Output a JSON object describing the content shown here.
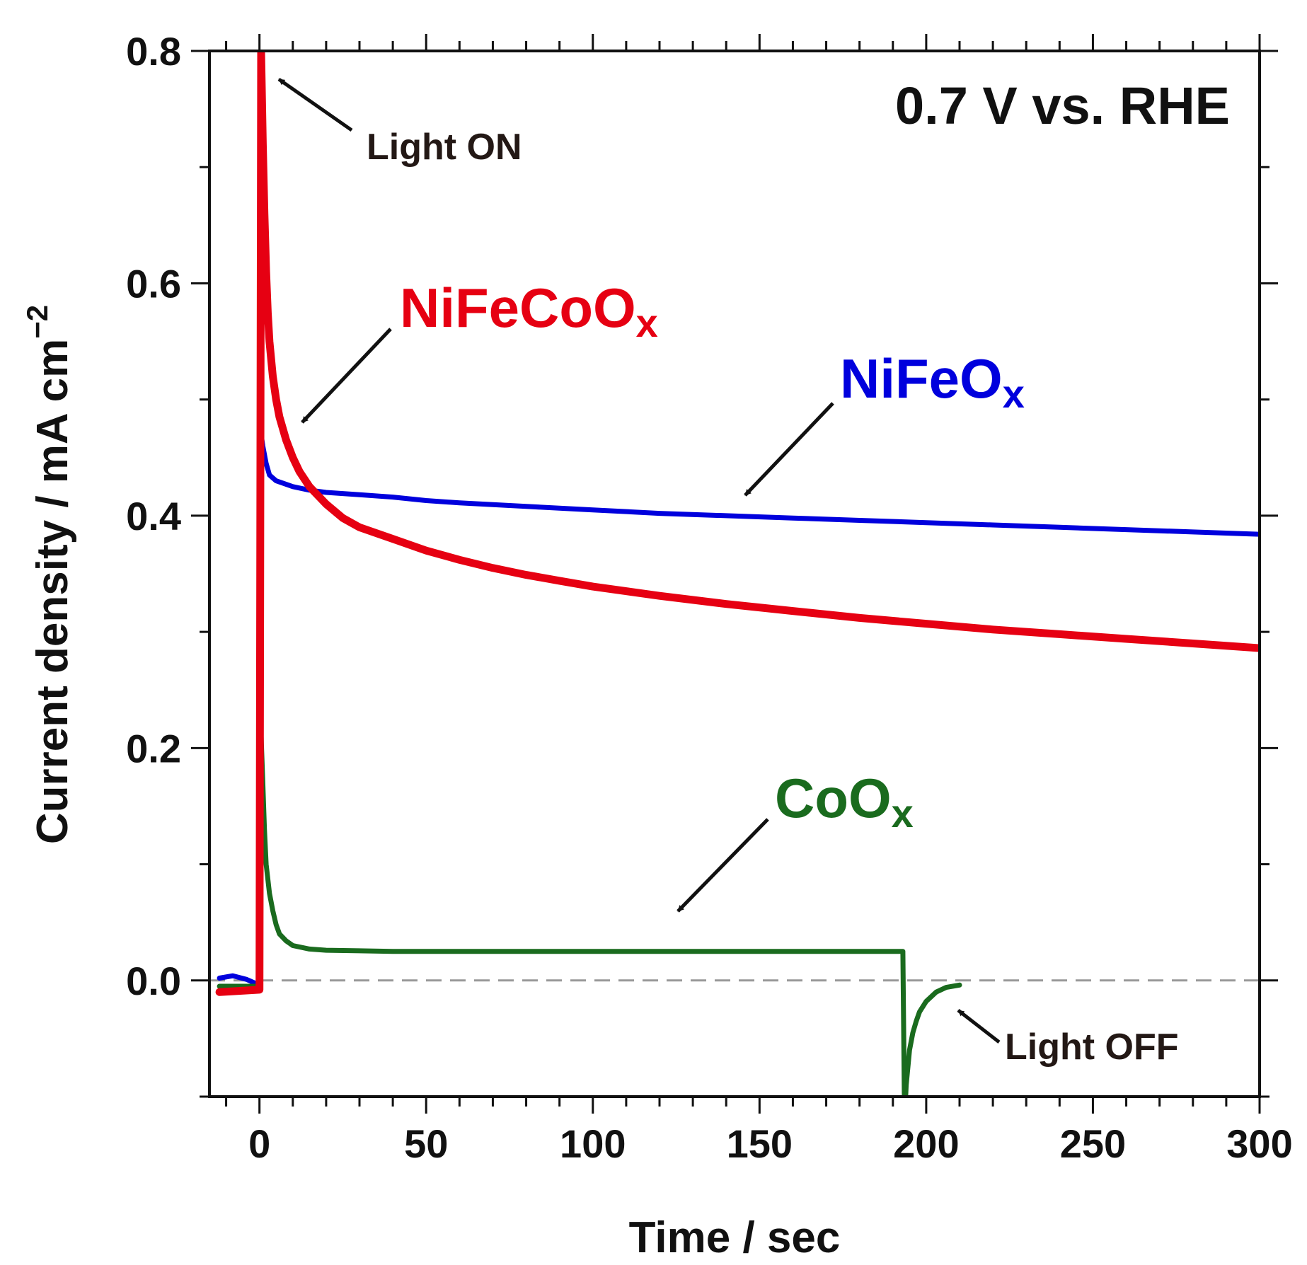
{
  "chart_data": {
    "type": "line",
    "title": "",
    "condition": "0.7 V vs. RHE",
    "xlabel": "Time  / sec",
    "ylabel": "Current density / mA cm",
    "ylabel_sup": "−2",
    "xlim": [
      -15,
      300
    ],
    "ylim": [
      -0.1,
      0.8
    ],
    "x_ticks": [
      0,
      50,
      100,
      150,
      200,
      250,
      300
    ],
    "x_tick_labels": [
      "0",
      "50",
      "100",
      "150",
      "200",
      "250",
      "300"
    ],
    "y_ticks": [
      0.0,
      0.2,
      0.4,
      0.6,
      0.8
    ],
    "y_tick_labels": [
      "0.0",
      "0.2",
      "0.4",
      "0.6",
      "0.8"
    ],
    "zero_line": 0.0,
    "series": [
      {
        "name": "NiFeCoO",
        "subscript": "x",
        "color": "#e60012",
        "x": [
          -12,
          0,
          0.5,
          1,
          1.5,
          2,
          2.5,
          3,
          4,
          5,
          6,
          8,
          10,
          12,
          15,
          20,
          25,
          30,
          40,
          50,
          60,
          70,
          80,
          90,
          100,
          120,
          140,
          160,
          180,
          200,
          220,
          240,
          260,
          280,
          300
        ],
        "y": [
          -0.01,
          -0.008,
          0.8,
          0.72,
          0.66,
          0.61,
          0.575,
          0.55,
          0.52,
          0.5,
          0.485,
          0.465,
          0.45,
          0.438,
          0.425,
          0.41,
          0.398,
          0.39,
          0.38,
          0.37,
          0.362,
          0.355,
          0.349,
          0.344,
          0.339,
          0.331,
          0.324,
          0.318,
          0.312,
          0.307,
          0.302,
          0.298,
          0.294,
          0.29,
          0.286
        ]
      },
      {
        "name": "NiFeO",
        "subscript": "x",
        "color": "#0000dd",
        "x": [
          -12,
          -8,
          -4,
          0,
          0.5,
          1,
          2,
          3,
          5,
          10,
          15,
          20,
          30,
          40,
          50,
          60,
          80,
          100,
          120,
          140,
          160,
          180,
          200,
          220,
          240,
          260,
          280,
          300
        ],
        "y": [
          0.002,
          0.004,
          0.001,
          -0.004,
          0.47,
          0.46,
          0.445,
          0.435,
          0.43,
          0.425,
          0.422,
          0.42,
          0.418,
          0.416,
          0.413,
          0.411,
          0.408,
          0.405,
          0.402,
          0.4,
          0.398,
          0.396,
          0.394,
          0.392,
          0.39,
          0.388,
          0.386,
          0.384
        ]
      },
      {
        "name": "CoO",
        "subscript": "x",
        "color": "#1a6b1e",
        "x": [
          -12,
          0,
          0.5,
          1,
          1.5,
          2,
          3,
          4,
          5,
          6,
          8,
          10,
          15,
          20,
          40,
          60,
          80,
          100,
          120,
          140,
          160,
          180,
          193,
          193.5,
          194,
          195,
          196,
          197,
          198,
          200,
          203,
          206,
          210
        ],
        "y": [
          -0.005,
          -0.005,
          0.21,
          0.17,
          0.13,
          0.1,
          0.075,
          0.06,
          0.048,
          0.04,
          0.034,
          0.03,
          0.027,
          0.026,
          0.025,
          0.025,
          0.025,
          0.025,
          0.025,
          0.025,
          0.025,
          0.025,
          0.025,
          -0.12,
          -0.09,
          -0.06,
          -0.045,
          -0.035,
          -0.027,
          -0.018,
          -0.01,
          -0.006,
          -0.004
        ]
      }
    ],
    "annotations": [
      {
        "text": "Light ON",
        "x": 2,
        "y": 0.79
      },
      {
        "text": "Light OFF",
        "x": 209,
        "y": -0.02
      }
    ]
  }
}
